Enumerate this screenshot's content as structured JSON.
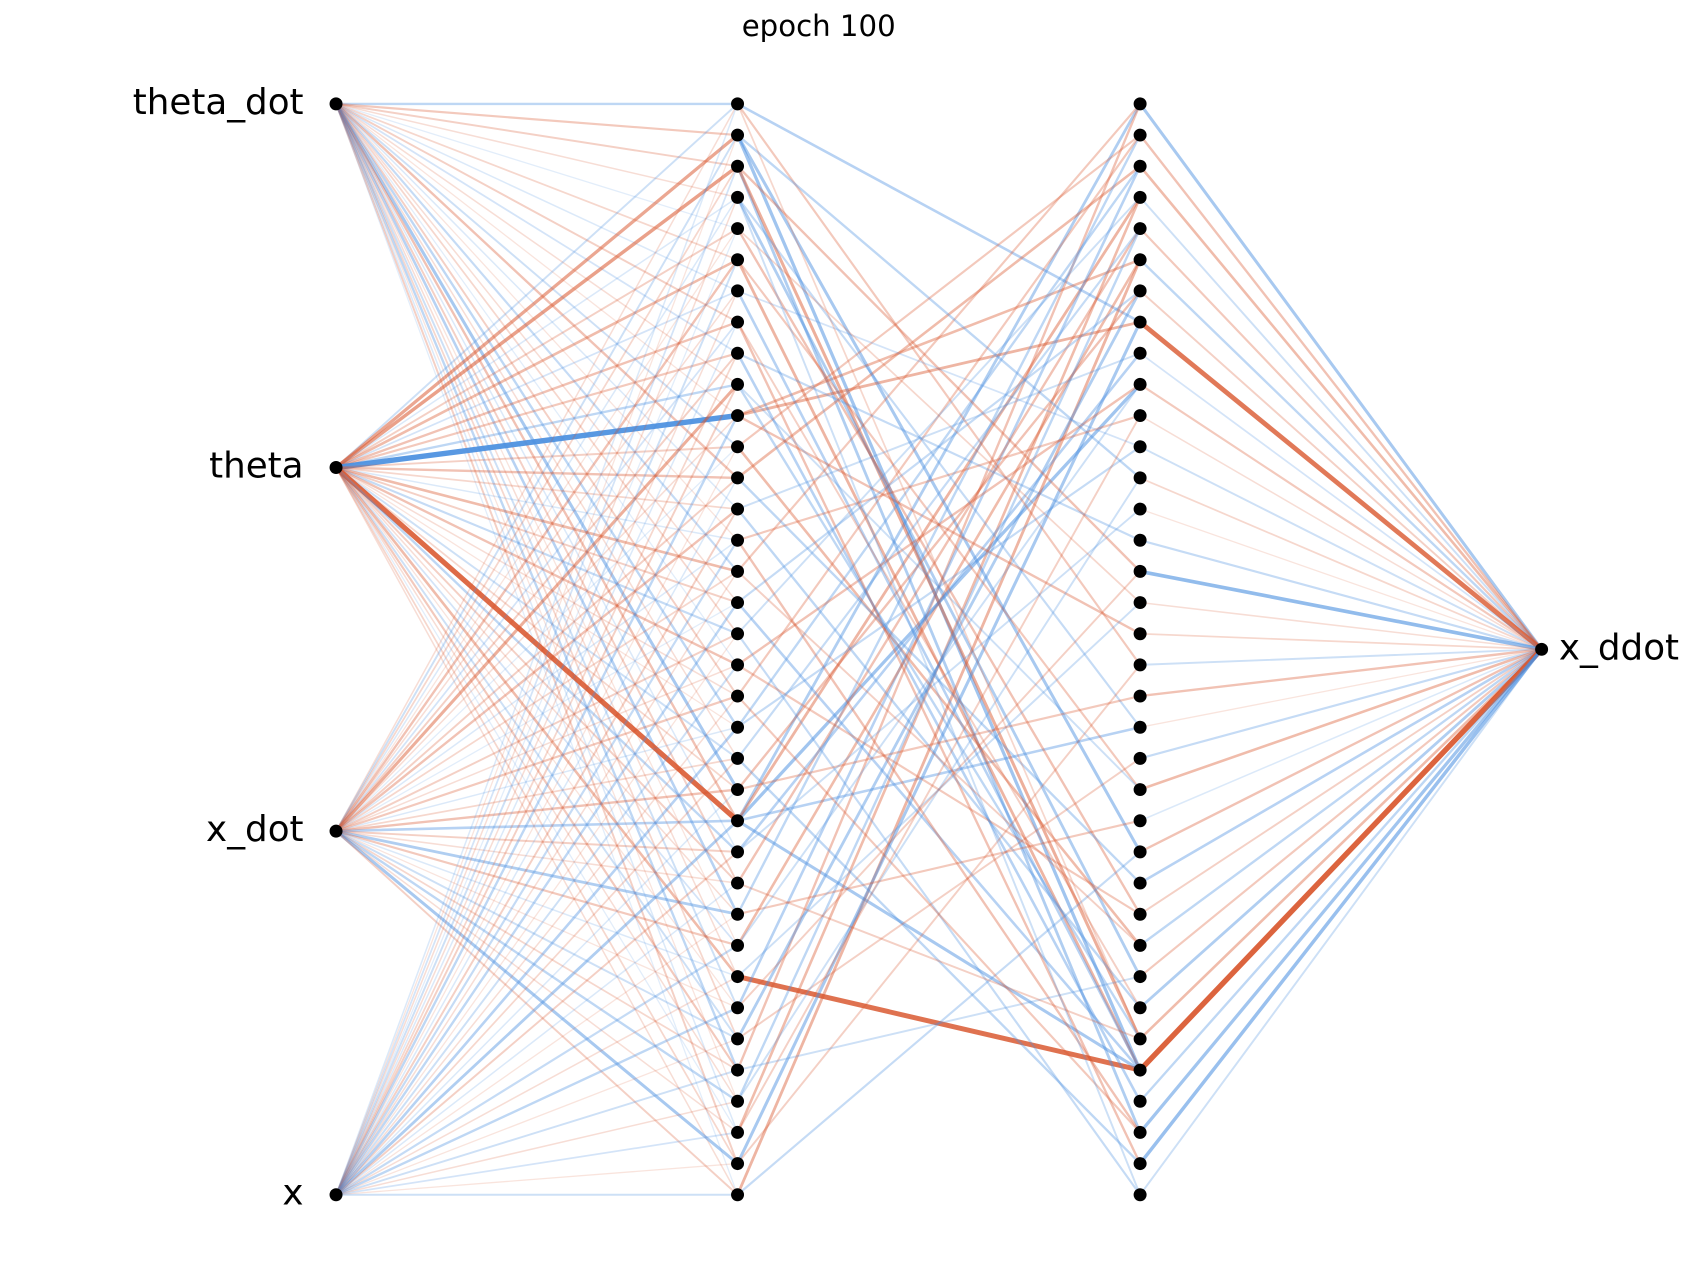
{
  "title": "epoch 100",
  "input_labels": [
    "theta_dot",
    "theta",
    "x_dot",
    "x"
  ],
  "hidden_sizes": [
    36,
    36
  ],
  "output_labels": [
    "x_ddot"
  ],
  "input_weights": [
    [
      -0.3,
      0.25,
      0.2,
      0.1,
      -0.05,
      0.15,
      -0.1,
      0.2,
      -0.15,
      0.1,
      0.05,
      -0.2,
      0.3,
      -0.1,
      0.05,
      -0.25,
      0.1,
      0.15,
      -0.05,
      0.2,
      -0.3,
      0.1,
      -0.45,
      0.3,
      -0.1,
      0.2,
      -0.35,
      0.05,
      0.1,
      -0.2,
      0.15,
      -0.3,
      0.05,
      -0.1,
      0.2,
      -0.05
    ],
    [
      -0.2,
      0.5,
      0.55,
      -0.1,
      0.2,
      0.35,
      -0.15,
      0.3,
      0.25,
      -0.3,
      -1.0,
      0.2,
      0.3,
      0.15,
      -0.1,
      0.35,
      0.2,
      -0.25,
      0.3,
      0.1,
      0.05,
      -0.2,
      0.15,
      0.95,
      -0.3,
      0.2,
      0.1,
      -0.15,
      0.35,
      0.05,
      -0.2,
      0.25,
      0.1,
      -0.05,
      0.15,
      0.1
    ],
    [
      0.1,
      -0.2,
      0.15,
      -0.1,
      0.05,
      0.3,
      0.1,
      -0.15,
      0.2,
      0.45,
      0.1,
      -0.05,
      0.2,
      0.3,
      -0.1,
      0.15,
      -0.05,
      0.2,
      0.1,
      0.25,
      -0.1,
      0.15,
      0.3,
      -0.35,
      0.2,
      0.1,
      -0.4,
      0.25,
      -0.1,
      0.05,
      -0.2,
      0.15,
      -0.3,
      0.1,
      -0.45,
      0.2
    ],
    [
      -0.1,
      0.05,
      -0.15,
      0.1,
      -0.05,
      -0.2,
      0.1,
      -0.1,
      0.15,
      0.2,
      -0.3,
      0.05,
      -0.1,
      0.2,
      -0.25,
      0.1,
      -0.3,
      0.05,
      -0.2,
      0.1,
      -0.35,
      0.15,
      -0.1,
      -0.4,
      0.2,
      -0.1,
      0.05,
      -0.25,
      0.1,
      -0.3,
      0.05,
      -0.2,
      0.1,
      -0.15,
      0.05,
      -0.2
    ]
  ],
  "hidden_edges": [
    [
      28,
      31,
      0.9
    ],
    [
      23,
      0,
      -0.4
    ],
    [
      23,
      9,
      -0.5
    ],
    [
      23,
      3,
      0.4
    ],
    [
      23,
      31,
      -0.45
    ],
    [
      23,
      20,
      -0.35
    ],
    [
      1,
      31,
      -0.5
    ],
    [
      1,
      24,
      -0.45
    ],
    [
      2,
      33,
      -0.4
    ],
    [
      2,
      30,
      0.45
    ],
    [
      0,
      7,
      -0.35
    ],
    [
      10,
      7,
      0.4
    ],
    [
      10,
      5,
      0.35
    ],
    [
      5,
      31,
      0.4
    ],
    [
      3,
      28,
      -0.4
    ],
    [
      8,
      32,
      -0.35
    ],
    [
      12,
      2,
      0.35
    ],
    [
      35,
      5,
      0.4
    ],
    [
      34,
      7,
      -0.45
    ],
    [
      33,
      3,
      0.35
    ],
    [
      31,
      0,
      0.3
    ],
    [
      30,
      6,
      -0.4
    ],
    [
      29,
      2,
      -0.35
    ],
    [
      27,
      5,
      0.35
    ],
    [
      26,
      1,
      -0.3
    ],
    [
      25,
      4,
      0.3
    ],
    [
      24,
      8,
      -0.35
    ],
    [
      22,
      6,
      0.3
    ],
    [
      20,
      2,
      -0.3
    ],
    [
      18,
      9,
      0.3
    ],
    [
      16,
      31,
      -0.35
    ],
    [
      14,
      33,
      0.3
    ],
    [
      13,
      29,
      -0.3
    ],
    [
      11,
      27,
      0.35
    ],
    [
      9,
      30,
      -0.3
    ],
    [
      7,
      34,
      0.3
    ],
    [
      6,
      31,
      -0.35
    ],
    [
      4,
      26,
      0.3
    ],
    [
      15,
      0,
      0.25
    ],
    [
      17,
      35,
      -0.25
    ],
    [
      19,
      1,
      0.25
    ],
    [
      21,
      34,
      -0.3
    ],
    [
      32,
      4,
      -0.3
    ],
    [
      0,
      18,
      0.25
    ],
    [
      1,
      12,
      -0.3
    ],
    [
      2,
      15,
      0.3
    ],
    [
      3,
      20,
      -0.25
    ],
    [
      5,
      22,
      0.25
    ],
    [
      8,
      14,
      -0.25
    ],
    [
      10,
      17,
      0.3
    ],
    [
      12,
      25,
      -0.3
    ],
    [
      14,
      10,
      0.25
    ],
    [
      16,
      6,
      -0.25
    ],
    [
      18,
      26,
      0.25
    ],
    [
      20,
      11,
      -0.25
    ],
    [
      22,
      19,
      0.25
    ],
    [
      24,
      13,
      -0.2
    ],
    [
      26,
      23,
      0.25
    ],
    [
      28,
      16,
      -0.2
    ],
    [
      30,
      21,
      0.2
    ],
    [
      32,
      12,
      -0.2
    ],
    [
      34,
      18,
      0.2
    ],
    [
      35,
      24,
      -0.25
    ],
    [
      33,
      10,
      0.2
    ],
    [
      31,
      28,
      -0.2
    ],
    [
      29,
      15,
      0.2
    ],
    [
      27,
      9,
      -0.2
    ],
    [
      25,
      30,
      0.2
    ],
    [
      21,
      4,
      -0.25
    ],
    [
      19,
      33,
      0.25
    ],
    [
      17,
      3,
      -0.2
    ],
    [
      15,
      27,
      0.2
    ],
    [
      13,
      8,
      -0.2
    ],
    [
      11,
      1,
      0.25
    ],
    [
      9,
      22,
      -0.2
    ],
    [
      7,
      29,
      0.2
    ],
    [
      6,
      11,
      -0.15
    ],
    [
      4,
      16,
      0.15
    ],
    [
      3,
      35,
      -0.2
    ],
    [
      0,
      30,
      0.15
    ]
  ],
  "output_weights": [
    -0.45,
    0.3,
    0.35,
    -0.2,
    0.25,
    -0.3,
    0.2,
    0.85,
    -0.15,
    0.25,
    0.1,
    -0.2,
    0.15,
    0.05,
    -0.25,
    -0.6,
    0.1,
    0.15,
    -0.2,
    0.3,
    0.05,
    -0.25,
    0.35,
    -0.1,
    0.3,
    -0.35,
    0.2,
    -0.3,
    0.25,
    -0.4,
    0.35,
    1.0,
    -0.3,
    -0.5,
    -0.55,
    -0.2
  ]
}
